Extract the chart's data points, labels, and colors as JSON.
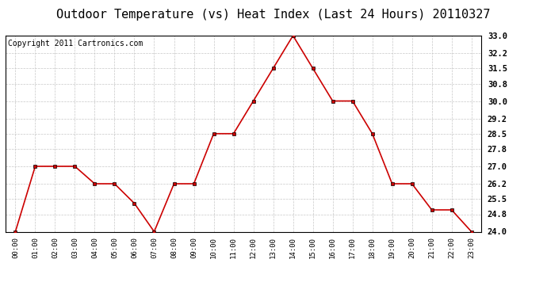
{
  "title": "Outdoor Temperature (vs) Heat Index (Last 24 Hours) 20110327",
  "copyright_text": "Copyright 2011 Cartronics.com",
  "x_labels": [
    "00:00",
    "01:00",
    "02:00",
    "03:00",
    "04:00",
    "05:00",
    "06:00",
    "07:00",
    "08:00",
    "09:00",
    "10:00",
    "11:00",
    "12:00",
    "13:00",
    "14:00",
    "15:00",
    "16:00",
    "17:00",
    "18:00",
    "19:00",
    "20:00",
    "21:00",
    "22:00",
    "23:00"
  ],
  "y_values": [
    24.0,
    27.0,
    27.0,
    27.0,
    26.2,
    26.2,
    25.3,
    24.0,
    26.2,
    26.2,
    28.5,
    28.5,
    30.0,
    31.5,
    33.0,
    31.5,
    30.0,
    30.0,
    28.5,
    26.2,
    26.2,
    25.0,
    25.0,
    24.0
  ],
  "y_ticks": [
    24.0,
    24.8,
    25.5,
    26.2,
    27.0,
    27.8,
    28.5,
    29.2,
    30.0,
    30.8,
    31.5,
    32.2,
    33.0
  ],
  "y_min": 24.0,
  "y_max": 33.0,
  "line_color": "#cc0000",
  "bg_color": "#ffffff",
  "grid_color": "#c8c8c8",
  "title_fontsize": 11,
  "copyright_fontsize": 7
}
